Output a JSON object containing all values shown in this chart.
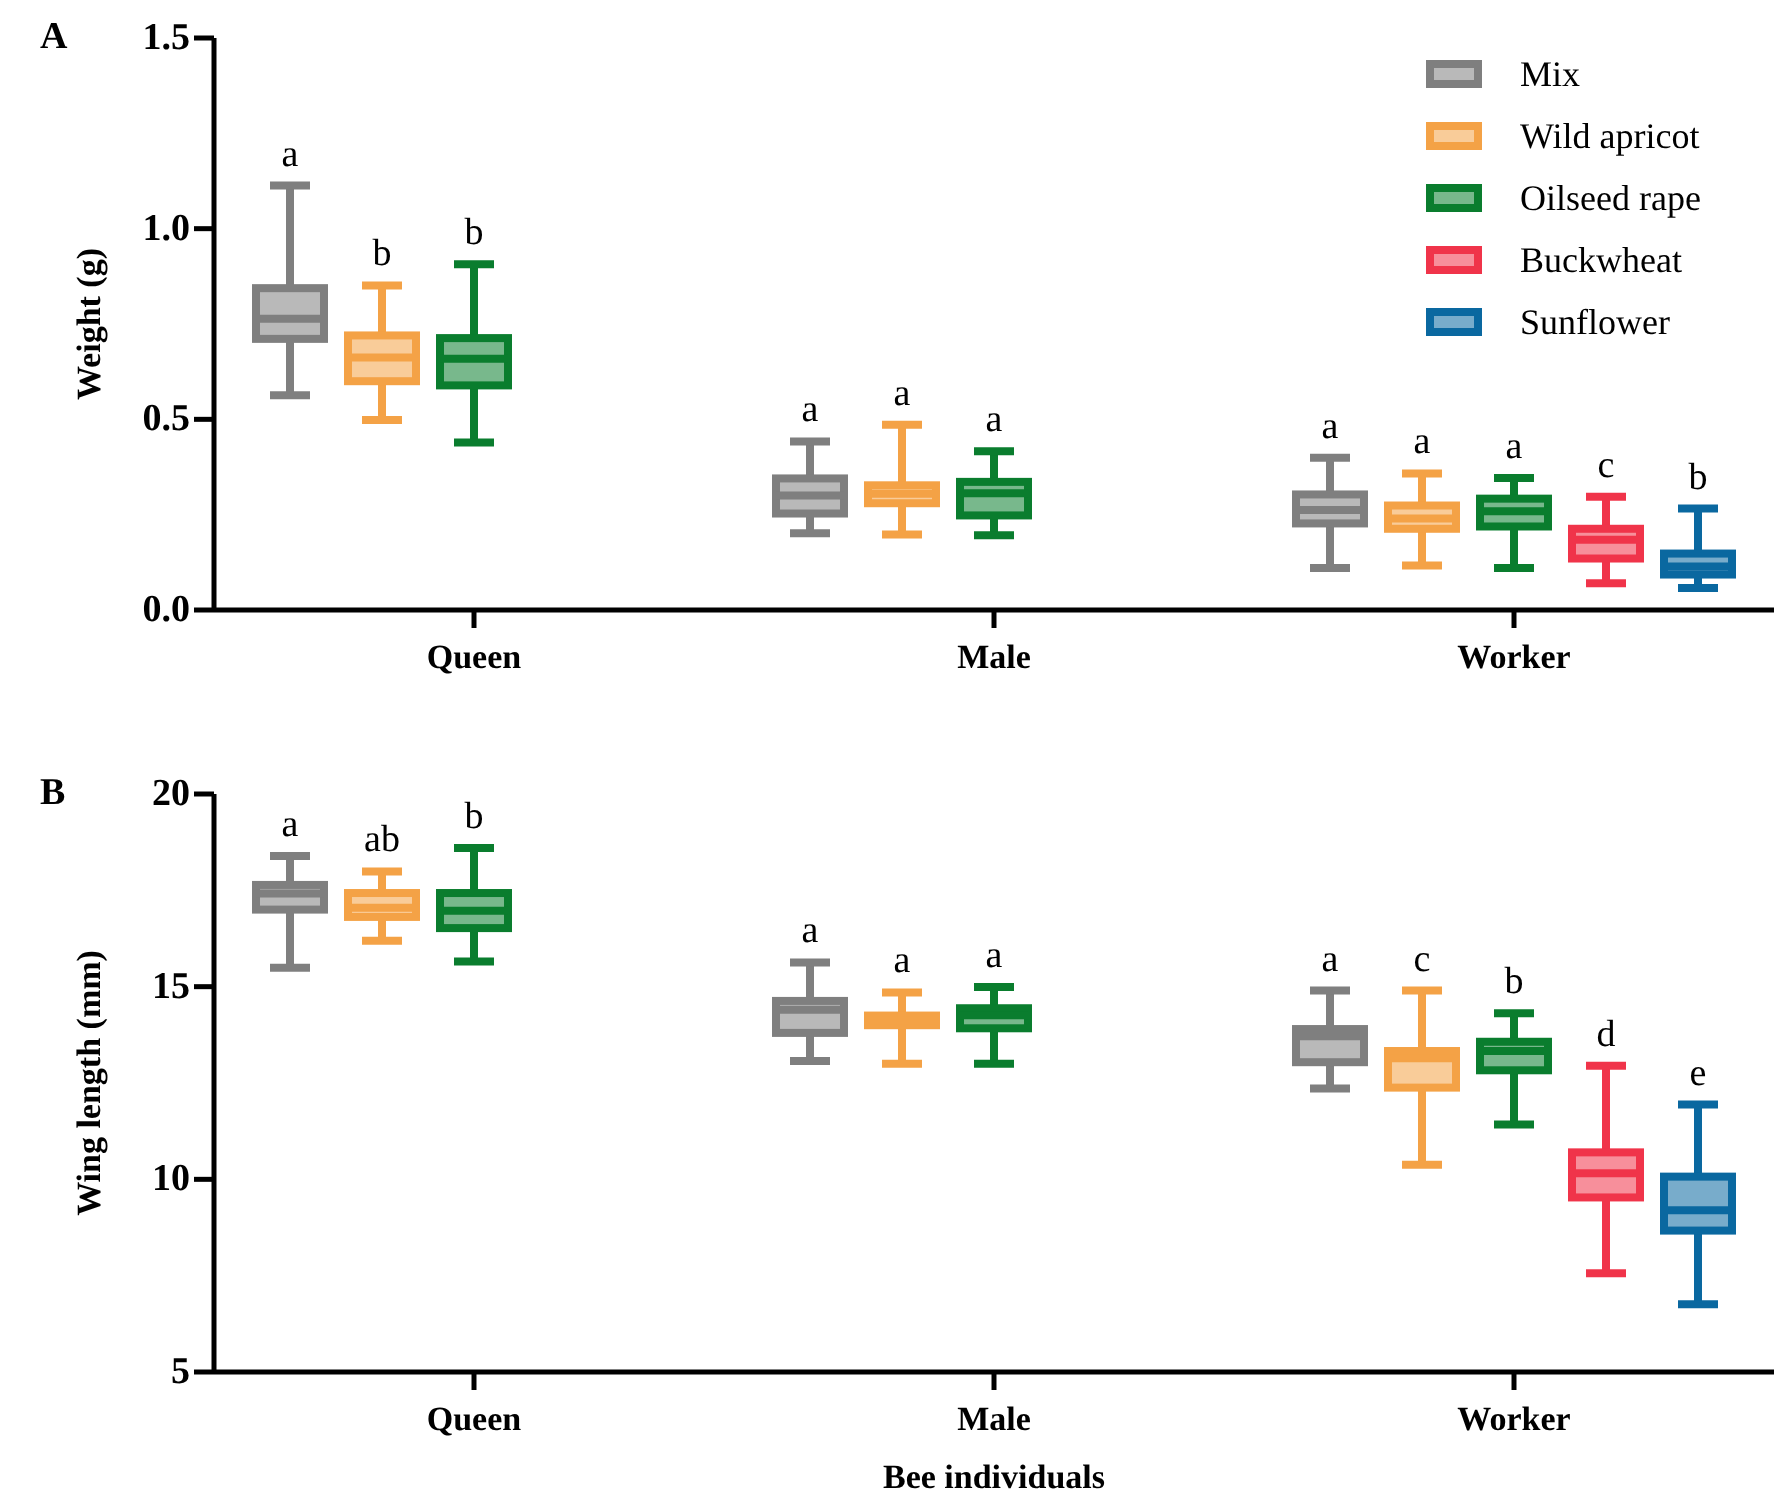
{
  "chart_data": [
    {
      "type": "box",
      "title": "A",
      "ylabel": "Weight (g)",
      "categories": [
        "Queen",
        "Male",
        "Worker"
      ],
      "ylim": [
        0,
        1.5
      ],
      "yticks": [
        {
          "value": 0,
          "label": "0.0"
        },
        {
          "value": 0.5,
          "label": "0.5"
        },
        {
          "value": 1,
          "label": "1.0"
        },
        {
          "value": 1.5,
          "label": "1.5"
        }
      ],
      "legend": "top right",
      "series": [
        {
          "name": "Mix",
          "color": "#7f7f7f",
          "boxes": [
            {
              "low": 0.563,
              "q1": 0.711,
              "median": 0.764,
              "q3": 0.844,
              "high": 1.113
            },
            {
              "low": 0.201,
              "q1": 0.253,
              "median": 0.3,
              "q3": 0.345,
              "high": 0.442
            },
            {
              "low": 0.11,
              "q1": 0.227,
              "median": 0.262,
              "q3": 0.303,
              "high": 0.399
            }
          ]
        },
        {
          "name": "Wild apricot",
          "color": "#f4a246",
          "boxes": [
            {
              "low": 0.498,
              "q1": 0.6,
              "median": 0.662,
              "q3": 0.72,
              "high": 0.851
            },
            {
              "low": 0.198,
              "q1": 0.28,
              "median": 0.305,
              "q3": 0.327,
              "high": 0.486
            },
            {
              "low": 0.117,
              "q1": 0.213,
              "median": 0.24,
              "q3": 0.274,
              "high": 0.358
            }
          ]
        },
        {
          "name": "Oilseed rape",
          "color": "#0a7d2e",
          "boxes": [
            {
              "low": 0.439,
              "q1": 0.589,
              "median": 0.659,
              "q3": 0.713,
              "high": 0.907
            },
            {
              "low": 0.196,
              "q1": 0.248,
              "median": 0.306,
              "q3": 0.336,
              "high": 0.416
            },
            {
              "low": 0.11,
              "q1": 0.219,
              "median": 0.259,
              "q3": 0.292,
              "high": 0.346
            }
          ]
        },
        {
          "name": "Buckwheat",
          "color": "#f0344a",
          "boxes": [
            null,
            null,
            {
              "low": 0.07,
              "q1": 0.135,
              "median": 0.184,
              "q3": 0.213,
              "high": 0.297
            }
          ]
        },
        {
          "name": "Sunflower",
          "color": "#0a68a0",
          "boxes": [
            null,
            null,
            {
              "low": 0.058,
              "q1": 0.093,
              "median": 0.114,
              "q3": 0.148,
              "high": 0.266
            }
          ]
        }
      ],
      "annotations": [
        "a",
        "b",
        "b",
        "a",
        "a",
        "a",
        "a",
        "a",
        "a",
        "c",
        "b"
      ]
    },
    {
      "type": "box",
      "title": "B",
      "xlabel": "Bee individuals",
      "ylabel": "Wing length (mm)",
      "categories": [
        "Queen",
        "Male",
        "Worker"
      ],
      "ylim": [
        5,
        20
      ],
      "yticks": [
        5,
        10,
        15,
        20
      ],
      "series": [
        {
          "color": "#7f7f7f",
          "boxes": [
            {
              "low": 15.49,
              "q1": 17.0,
              "median": 17.42,
              "q3": 17.64,
              "high": 18.39
            },
            {
              "low": 13.07,
              "q1": 13.8,
              "median": 14.4,
              "q3": 14.63,
              "high": 15.63
            },
            {
              "low": 12.36,
              "q1": 13.04,
              "median": 13.71,
              "q3": 13.9,
              "high": 14.9
            }
          ]
        },
        {
          "color": "#f4a246",
          "boxes": [
            {
              "low": 16.19,
              "q1": 16.81,
              "median": 17.05,
              "q3": 17.43,
              "high": 17.99
            },
            {
              "low": 13.0,
              "q1": 14.0,
              "median": 14.13,
              "q3": 14.25,
              "high": 14.85
            },
            {
              "low": 10.38,
              "q1": 12.38,
              "median": 13.14,
              "q3": 13.33,
              "high": 14.9
            }
          ]
        },
        {
          "color": "#0a7d2e",
          "boxes": [
            {
              "low": 15.65,
              "q1": 16.52,
              "median": 16.97,
              "q3": 17.43,
              "high": 18.6
            },
            {
              "low": 13.0,
              "q1": 13.92,
              "median": 14.26,
              "q3": 14.44,
              "high": 14.99
            },
            {
              "low": 11.42,
              "q1": 12.83,
              "median": 13.33,
              "q3": 13.57,
              "high": 14.31
            }
          ]
        },
        {
          "color": "#f0344a",
          "boxes": [
            null,
            null,
            {
              "low": 7.56,
              "q1": 9.53,
              "median": 10.16,
              "q3": 10.7,
              "high": 12.95
            }
          ]
        },
        {
          "color": "#0a68a0",
          "boxes": [
            null,
            null,
            {
              "low": 6.76,
              "q1": 8.67,
              "median": 9.2,
              "q3": 10.07,
              "high": 11.94
            }
          ]
        }
      ],
      "annotations": [
        "a",
        "ab",
        "b",
        "a",
        "a",
        "a",
        "a",
        "c",
        "b",
        "d",
        "e"
      ]
    }
  ]
}
